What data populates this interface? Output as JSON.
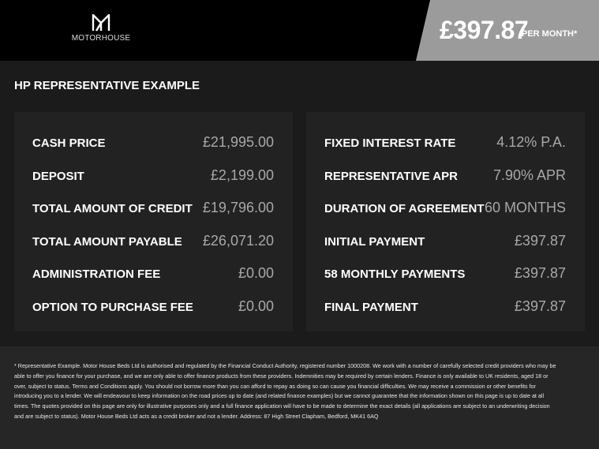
{
  "header": {
    "brand": "MOTORHOUSE",
    "price": "£397.87",
    "per_month": "PER MONTH*",
    "colors": {
      "header_bg": "#000000",
      "banner_bg": "#9b9b9b"
    }
  },
  "title": "HP REPRESENTATIVE EXAMPLE",
  "left_panel": [
    {
      "label": "CASH PRICE",
      "value": "£21,995.00"
    },
    {
      "label": "DEPOSIT",
      "value": "£2,199.00"
    },
    {
      "label": "TOTAL AMOUNT OF CREDIT",
      "value": "£19,796.00"
    },
    {
      "label": "TOTAL AMOUNT PAYABLE",
      "value": "£26,071.20"
    },
    {
      "label": "ADMINISTRATION FEE",
      "value": "£0.00"
    },
    {
      "label": "OPTION TO PURCHASE FEE",
      "value": "£0.00"
    }
  ],
  "right_panel": [
    {
      "label": "FIXED INTEREST RATE",
      "value": "4.12% P.A."
    },
    {
      "label": "REPRESENTATIVE APR",
      "value": "7.90% APR"
    },
    {
      "label": "DURATION OF AGREEMENT",
      "value": "60 MONTHS"
    },
    {
      "label": "INITIAL PAYMENT",
      "value": "£397.87"
    },
    {
      "label": "58 MONTHLY PAYMENTS",
      "value": "£397.87"
    },
    {
      "label": "FINAL PAYMENT",
      "value": "£397.87"
    }
  ],
  "footer": {
    "disclaimer": "* Representative Example. Motor House Beds Ltd is authorised and regulated by the Financial Conduct Authority, registered number 1000208. We work with a number of carefully selected credit providers who may be able to offer you finance for your purchase, and we are only able to offer finance products from these providers. Indemnities may be required by certain lenders. Finance is only available to UK residents, aged 18 or over, subject to status. Terms and Conditions apply. You should not borrow more than you can afford to repay as doing so can cause you financial difficulties. We may receive a commission or other benefits for introducing you to a lender. We will endeavour to keep information on the road prices up to date (and related finance examples) but we cannot guarantee that the information shown on this page is up to date at all times. The quotes provided on this page are only for illustrative purposes only and a full finance application will have to be made to determine the exact details (all applications are subject to an underwriting decision and are subject to status). Motor House Beds Ltd acts as a credit broker and not a lender. Address: 87 High Street Clapham, Bedford, MK41 6AQ"
  }
}
